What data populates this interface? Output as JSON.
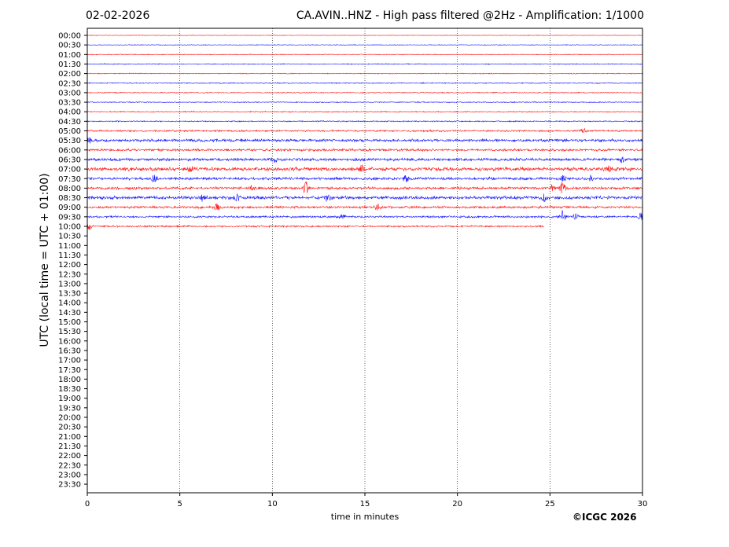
{
  "header": {
    "date": "02-02-2026",
    "title": "CA.AVIN..HNZ - High pass filtered @2Hz - Amplification: 1/1000"
  },
  "footer": {
    "copyright": "©ICGC 2026"
  },
  "chart_data": {
    "type": "line",
    "title": "CA.AVIN..HNZ - High pass filtered @2Hz - Amplification: 1/1000",
    "xlabel": "time in minutes",
    "ylabel": "UTC (local time = UTC + 01:00)",
    "xlim": [
      0,
      30
    ],
    "xticks": [
      0,
      5,
      10,
      15,
      20,
      25,
      30
    ],
    "grid": "vertical dotted at x ticks",
    "colors": {
      "even_row": "#ff0000",
      "odd_row": "#0000ff"
    },
    "row_labels": [
      "00:00",
      "00:30",
      "01:00",
      "01:30",
      "02:00",
      "02:30",
      "03:00",
      "03:30",
      "04:00",
      "04:30",
      "05:00",
      "05:30",
      "06:00",
      "06:30",
      "07:00",
      "07:30",
      "08:00",
      "08:30",
      "09:00",
      "09:30",
      "10:00",
      "10:30",
      "11:00",
      "11:30",
      "12:00",
      "12:30",
      "13:00",
      "13:30",
      "14:00",
      "14:30",
      "15:00",
      "15:30",
      "16:00",
      "16:30",
      "17:00",
      "17:30",
      "18:00",
      "18:30",
      "19:00",
      "19:30",
      "20:00",
      "20:30",
      "21:00",
      "21:30",
      "22:00",
      "22:30",
      "23:00",
      "23:30"
    ],
    "traces": [
      {
        "row": "00:00",
        "end_min": 30,
        "amp": 0.3,
        "bursts": []
      },
      {
        "row": "00:30",
        "end_min": 30,
        "amp": 0.35,
        "bursts": []
      },
      {
        "row": "01:00",
        "end_min": 30,
        "amp": 0.4,
        "bursts": []
      },
      {
        "row": "01:30",
        "end_min": 30,
        "amp": 0.45,
        "bursts": []
      },
      {
        "row": "02:00",
        "end_min": 30,
        "amp": 0.45,
        "bursts": []
      },
      {
        "row": "02:30",
        "end_min": 30,
        "amp": 0.5,
        "bursts": []
      },
      {
        "row": "03:00",
        "end_min": 30,
        "amp": 0.5,
        "bursts": []
      },
      {
        "row": "03:30",
        "end_min": 30,
        "amp": 0.5,
        "bursts": []
      },
      {
        "row": "04:00",
        "end_min": 30,
        "amp": 0.55,
        "bursts": []
      },
      {
        "row": "04:30",
        "end_min": 30,
        "amp": 0.6,
        "bursts": []
      },
      {
        "row": "05:00",
        "end_min": 30,
        "amp": 0.9,
        "bursts": [
          [
            26.8,
            2.5
          ]
        ]
      },
      {
        "row": "05:30",
        "end_min": 30,
        "amp": 1.4,
        "bursts": [
          [
            0.1,
            3
          ]
        ]
      },
      {
        "row": "06:00",
        "end_min": 30,
        "amp": 1.2,
        "bursts": []
      },
      {
        "row": "06:30",
        "end_min": 30,
        "amp": 1.4,
        "bursts": [
          [
            10.1,
            4
          ],
          [
            28.9,
            3
          ]
        ]
      },
      {
        "row": "07:00",
        "end_min": 30,
        "amp": 1.8,
        "bursts": [
          [
            5.6,
            3.5
          ],
          [
            14.8,
            4
          ],
          [
            28.2,
            3
          ]
        ]
      },
      {
        "row": "07:30",
        "end_min": 30,
        "amp": 1.4,
        "bursts": [
          [
            3.6,
            4
          ],
          [
            17.2,
            4
          ],
          [
            25.7,
            3.5
          ],
          [
            27.2,
            3
          ]
        ]
      },
      {
        "row": "08:00",
        "end_min": 30,
        "amp": 1.3,
        "bursts": [
          [
            8.9,
            2.5
          ],
          [
            11.8,
            8
          ],
          [
            25.7,
            8
          ],
          [
            25.1,
            3.5
          ]
        ]
      },
      {
        "row": "08:30",
        "end_min": 30,
        "amp": 1.6,
        "bursts": [
          [
            6.2,
            3
          ],
          [
            8.1,
            3.5
          ],
          [
            13.0,
            4
          ],
          [
            24.7,
            4.5
          ]
        ]
      },
      {
        "row": "09:00",
        "end_min": 30,
        "amp": 1.2,
        "bursts": [
          [
            7.0,
            4
          ],
          [
            15.7,
            3.5
          ]
        ]
      },
      {
        "row": "09:30",
        "end_min": 30,
        "amp": 1.0,
        "bursts": [
          [
            13.8,
            3
          ],
          [
            25.7,
            8
          ],
          [
            26.4,
            3
          ],
          [
            29.9,
            4
          ]
        ]
      },
      {
        "row": "10:00",
        "end_min": 24.7,
        "amp": 0.9,
        "bursts": [
          [
            0.1,
            4
          ]
        ]
      }
    ]
  }
}
